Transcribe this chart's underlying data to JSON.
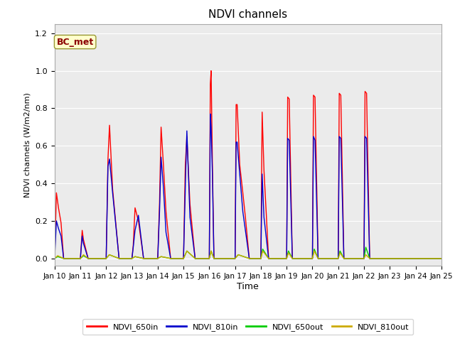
{
  "title": "NDVI channels",
  "xlabel": "Time",
  "ylabel": "NDVI channels (W/m2/nm)",
  "annotation": "BC_met",
  "annotation_color": "#8B0000",
  "annotation_bg": "#FFFFCC",
  "ylim": [
    -0.04,
    1.25
  ],
  "xlim": [
    0,
    15
  ],
  "background_color": "#EBEBEB",
  "colors": {
    "NDVI_650in": "#FF0000",
    "NDVI_810in": "#0000CC",
    "NDVI_650out": "#00CC00",
    "NDVI_810out": "#CCAA00"
  },
  "x_tick_labels": [
    "Jan 10",
    "Jan 11",
    "Jan 12",
    "Jan 13",
    "Jan 14",
    "Jan 15",
    "Jan 16",
    "Jan 17",
    "Jan 18",
    "Jan 19",
    "Jan 20",
    "Jan 21",
    "Jan 22",
    "Jan 23",
    "Jan 24",
    "Jan 25"
  ],
  "series": {
    "NDVI_650in": [
      [
        0.0,
        0.0
      ],
      [
        0.07,
        0.35
      ],
      [
        0.15,
        0.27
      ],
      [
        0.25,
        0.19
      ],
      [
        0.35,
        0.0
      ],
      [
        1.0,
        0.0
      ],
      [
        1.07,
        0.15
      ],
      [
        1.12,
        0.1
      ],
      [
        1.3,
        0.0
      ],
      [
        2.0,
        0.0
      ],
      [
        2.07,
        0.53
      ],
      [
        2.13,
        0.71
      ],
      [
        2.25,
        0.37
      ],
      [
        2.5,
        0.0
      ],
      [
        3.0,
        0.0
      ],
      [
        3.05,
        0.07
      ],
      [
        3.12,
        0.27
      ],
      [
        3.25,
        0.2
      ],
      [
        3.45,
        0.0
      ],
      [
        4.0,
        0.0
      ],
      [
        4.07,
        0.3
      ],
      [
        4.13,
        0.7
      ],
      [
        4.22,
        0.5
      ],
      [
        4.32,
        0.25
      ],
      [
        4.5,
        0.0
      ],
      [
        5.0,
        0.0
      ],
      [
        5.07,
        0.5
      ],
      [
        5.13,
        0.65
      ],
      [
        5.25,
        0.29
      ],
      [
        5.45,
        0.0
      ],
      [
        6.0,
        0.0
      ],
      [
        6.04,
        0.93
      ],
      [
        6.07,
        1.0
      ],
      [
        6.12,
        0.51
      ],
      [
        6.18,
        0.0
      ],
      [
        7.0,
        0.0
      ],
      [
        7.04,
        0.82
      ],
      [
        7.08,
        0.82
      ],
      [
        7.18,
        0.5
      ],
      [
        7.3,
        0.35
      ],
      [
        7.4,
        0.22
      ],
      [
        7.55,
        0.0
      ],
      [
        8.0,
        0.0
      ],
      [
        8.05,
        0.78
      ],
      [
        8.12,
        0.47
      ],
      [
        8.3,
        0.0
      ],
      [
        9.0,
        0.0
      ],
      [
        9.04,
        0.86
      ],
      [
        9.1,
        0.85
      ],
      [
        9.22,
        0.0
      ],
      [
        10.0,
        0.0
      ],
      [
        10.04,
        0.87
      ],
      [
        10.1,
        0.86
      ],
      [
        10.22,
        0.0
      ],
      [
        11.0,
        0.0
      ],
      [
        11.04,
        0.88
      ],
      [
        11.1,
        0.87
      ],
      [
        11.22,
        0.0
      ],
      [
        12.0,
        0.0
      ],
      [
        12.04,
        0.89
      ],
      [
        12.1,
        0.88
      ],
      [
        12.22,
        0.0
      ],
      [
        15.0,
        0.0
      ]
    ],
    "NDVI_810in": [
      [
        0.0,
        0.0
      ],
      [
        0.07,
        0.2
      ],
      [
        0.15,
        0.16
      ],
      [
        0.25,
        0.12
      ],
      [
        0.35,
        0.0
      ],
      [
        1.0,
        0.0
      ],
      [
        1.07,
        0.12
      ],
      [
        1.12,
        0.08
      ],
      [
        1.3,
        0.0
      ],
      [
        2.0,
        0.0
      ],
      [
        2.07,
        0.49
      ],
      [
        2.13,
        0.53
      ],
      [
        2.25,
        0.35
      ],
      [
        2.5,
        0.0
      ],
      [
        3.0,
        0.0
      ],
      [
        3.05,
        0.06
      ],
      [
        3.12,
        0.15
      ],
      [
        3.25,
        0.23
      ],
      [
        3.45,
        0.0
      ],
      [
        4.0,
        0.0
      ],
      [
        4.07,
        0.25
      ],
      [
        4.13,
        0.54
      ],
      [
        4.22,
        0.38
      ],
      [
        4.32,
        0.14
      ],
      [
        4.5,
        0.0
      ],
      [
        5.0,
        0.0
      ],
      [
        5.07,
        0.38
      ],
      [
        5.13,
        0.68
      ],
      [
        5.25,
        0.22
      ],
      [
        5.45,
        0.0
      ],
      [
        6.0,
        0.0
      ],
      [
        6.04,
        0.77
      ],
      [
        6.07,
        0.7
      ],
      [
        6.12,
        0.45
      ],
      [
        6.18,
        0.0
      ],
      [
        7.0,
        0.0
      ],
      [
        7.04,
        0.62
      ],
      [
        7.08,
        0.62
      ],
      [
        7.18,
        0.45
      ],
      [
        7.3,
        0.25
      ],
      [
        7.4,
        0.15
      ],
      [
        7.55,
        0.0
      ],
      [
        8.0,
        0.0
      ],
      [
        8.05,
        0.45
      ],
      [
        8.12,
        0.22
      ],
      [
        8.3,
        0.0
      ],
      [
        9.0,
        0.0
      ],
      [
        9.04,
        0.64
      ],
      [
        9.1,
        0.63
      ],
      [
        9.22,
        0.0
      ],
      [
        10.0,
        0.0
      ],
      [
        10.04,
        0.65
      ],
      [
        10.1,
        0.63
      ],
      [
        10.22,
        0.0
      ],
      [
        11.0,
        0.0
      ],
      [
        11.04,
        0.65
      ],
      [
        11.1,
        0.64
      ],
      [
        11.22,
        0.0
      ],
      [
        12.0,
        0.0
      ],
      [
        12.04,
        0.65
      ],
      [
        12.1,
        0.64
      ],
      [
        12.22,
        0.0
      ],
      [
        15.0,
        0.0
      ]
    ],
    "NDVI_650out": [
      [
        0.0,
        0.0
      ],
      [
        0.12,
        0.01
      ],
      [
        0.35,
        0.0
      ],
      [
        1.0,
        0.0
      ],
      [
        1.12,
        0.015
      ],
      [
        1.3,
        0.0
      ],
      [
        2.0,
        0.0
      ],
      [
        2.12,
        0.02
      ],
      [
        2.5,
        0.0
      ],
      [
        3.0,
        0.0
      ],
      [
        3.12,
        0.01
      ],
      [
        3.45,
        0.0
      ],
      [
        4.0,
        0.0
      ],
      [
        4.13,
        0.01
      ],
      [
        4.5,
        0.0
      ],
      [
        5.0,
        0.0
      ],
      [
        5.13,
        0.04
      ],
      [
        5.45,
        0.0
      ],
      [
        6.0,
        0.0
      ],
      [
        6.07,
        0.04
      ],
      [
        6.18,
        0.0
      ],
      [
        7.0,
        0.0
      ],
      [
        7.12,
        0.02
      ],
      [
        7.55,
        0.0
      ],
      [
        8.0,
        0.0
      ],
      [
        8.07,
        0.05
      ],
      [
        8.3,
        0.0
      ],
      [
        9.0,
        0.0
      ],
      [
        9.07,
        0.04
      ],
      [
        9.22,
        0.0
      ],
      [
        10.0,
        0.0
      ],
      [
        10.07,
        0.05
      ],
      [
        10.22,
        0.0
      ],
      [
        11.0,
        0.0
      ],
      [
        11.07,
        0.04
      ],
      [
        11.22,
        0.0
      ],
      [
        12.0,
        0.0
      ],
      [
        12.07,
        0.06
      ],
      [
        12.22,
        0.0
      ],
      [
        15.0,
        0.0
      ]
    ],
    "NDVI_810out": [
      [
        0.0,
        0.0
      ],
      [
        0.12,
        0.015
      ],
      [
        0.35,
        0.0
      ],
      [
        1.0,
        0.0
      ],
      [
        1.12,
        0.02
      ],
      [
        1.3,
        0.0
      ],
      [
        2.0,
        0.0
      ],
      [
        2.12,
        0.02
      ],
      [
        2.5,
        0.0
      ],
      [
        3.0,
        0.0
      ],
      [
        3.12,
        0.01
      ],
      [
        3.45,
        0.0
      ],
      [
        4.0,
        0.0
      ],
      [
        4.13,
        0.01
      ],
      [
        4.5,
        0.0
      ],
      [
        5.0,
        0.0
      ],
      [
        5.13,
        0.04
      ],
      [
        5.45,
        0.0
      ],
      [
        6.0,
        0.0
      ],
      [
        6.07,
        0.04
      ],
      [
        6.18,
        0.0
      ],
      [
        7.0,
        0.0
      ],
      [
        7.12,
        0.02
      ],
      [
        7.55,
        0.0
      ],
      [
        8.0,
        0.0
      ],
      [
        8.07,
        0.04
      ],
      [
        8.3,
        0.0
      ],
      [
        9.0,
        0.0
      ],
      [
        9.07,
        0.03
      ],
      [
        9.22,
        0.0
      ],
      [
        10.0,
        0.0
      ],
      [
        10.07,
        0.04
      ],
      [
        10.22,
        0.0
      ],
      [
        11.0,
        0.0
      ],
      [
        11.07,
        0.03
      ],
      [
        11.22,
        0.0
      ],
      [
        12.0,
        0.0
      ],
      [
        12.07,
        0.02
      ],
      [
        12.22,
        0.0
      ],
      [
        15.0,
        0.0
      ]
    ]
  }
}
